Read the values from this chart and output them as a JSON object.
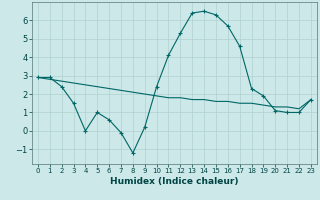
{
  "xlabel": "Humidex (Indice chaleur)",
  "bg_color": "#cce8e8",
  "grid_color": "#b0d0d0",
  "line_color": "#006666",
  "xlim": [
    -0.5,
    23.5
  ],
  "ylim": [
    -1.8,
    7.0
  ],
  "yticks": [
    -1,
    0,
    1,
    2,
    3,
    4,
    5,
    6
  ],
  "xticks": [
    0,
    1,
    2,
    3,
    4,
    5,
    6,
    7,
    8,
    9,
    10,
    11,
    12,
    13,
    14,
    15,
    16,
    17,
    18,
    19,
    20,
    21,
    22,
    23
  ],
  "series1_x": [
    0,
    1,
    2,
    3,
    4,
    5,
    6,
    7,
    8,
    9,
    10,
    11,
    12,
    13,
    14,
    15,
    16,
    17,
    18,
    19,
    20,
    21,
    22,
    23
  ],
  "series1_y": [
    2.9,
    2.9,
    2.4,
    1.5,
    0.0,
    1.0,
    0.6,
    -0.1,
    -1.2,
    0.2,
    2.4,
    4.1,
    5.3,
    6.4,
    6.5,
    6.3,
    5.7,
    4.6,
    2.3,
    1.9,
    1.1,
    1.0,
    1.0,
    1.7
  ],
  "series2_x": [
    0,
    1,
    2,
    3,
    4,
    5,
    6,
    7,
    8,
    9,
    10,
    11,
    12,
    13,
    14,
    15,
    16,
    17,
    18,
    19,
    20,
    21,
    22,
    23
  ],
  "series2_y": [
    2.9,
    2.8,
    2.7,
    2.6,
    2.5,
    2.4,
    2.3,
    2.2,
    2.1,
    2.0,
    1.9,
    1.8,
    1.8,
    1.7,
    1.7,
    1.6,
    1.6,
    1.5,
    1.5,
    1.4,
    1.3,
    1.3,
    1.2,
    1.7
  ]
}
